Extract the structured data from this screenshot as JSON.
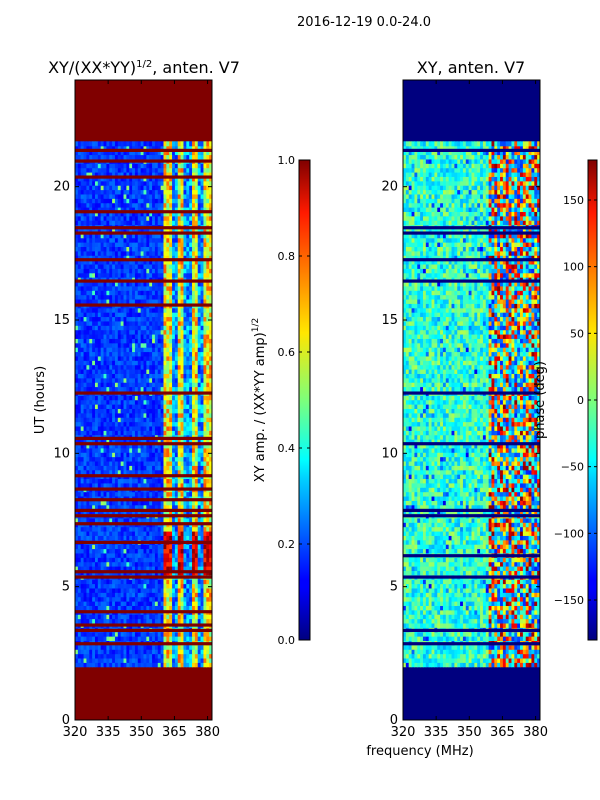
{
  "suptitle": "2016-12-19 0.0-24.0",
  "chart_data": [
    {
      "type": "heatmap",
      "title_main": "XY/(XX*YY)",
      "title_exp": "1/2",
      "title_suffix": ", anten. V7",
      "xlabel": "",
      "ylabel": "UT (hours)",
      "xlim": [
        320,
        382
      ],
      "ylim": [
        0,
        24
      ],
      "xticks": [
        "320",
        "335",
        "350",
        "365",
        "380"
      ],
      "xtick_values": [
        320,
        335,
        350,
        365,
        380
      ],
      "yticks": [
        "0",
        "5",
        "10",
        "15",
        "20"
      ],
      "ytick_values": [
        0,
        5,
        10,
        15,
        20
      ],
      "data_time_range_hours": [
        2,
        21.7
      ],
      "fill_value_color": "#800000",
      "colormap": "jet",
      "colorbar": {
        "label_main": "XY amp. / (XX*YY amp)",
        "label_exp": "1/2",
        "range": [
          0,
          1
        ],
        "ticks": [
          "0.0",
          "0.2",
          "0.4",
          "0.6",
          "0.8",
          "1.0"
        ],
        "tick_values": [
          0,
          0.2,
          0.4,
          0.6,
          0.8,
          1.0
        ]
      },
      "flagged_rows_hours": [
        2.8,
        3.3,
        3.5,
        4.0,
        5.3,
        5.5,
        6.6,
        7.3,
        7.6,
        7.8,
        8.2,
        8.6,
        9.1,
        10.3,
        10.5,
        12.2,
        15.5,
        16.4,
        17.2,
        18.2,
        18.4,
        19.0,
        20.3,
        20.9,
        21.3
      ]
    },
    {
      "type": "heatmap",
      "title_main": "XY, anten. V7",
      "xlabel": "frequency (MHz)",
      "ylabel": "",
      "xlim": [
        320,
        382
      ],
      "ylim": [
        0,
        24
      ],
      "xticks": [
        "320",
        "335",
        "350",
        "365",
        "380"
      ],
      "xtick_values": [
        320,
        335,
        350,
        365,
        380
      ],
      "yticks": [
        "0",
        "5",
        "10",
        "15",
        "20"
      ],
      "ytick_values": [
        0,
        5,
        10,
        15,
        20
      ],
      "data_time_range_hours": [
        2,
        21.7
      ],
      "fill_value_color": "#00007f",
      "colormap": "jet",
      "colorbar": {
        "label_main": "phase (deg)",
        "range": [
          -180,
          180
        ],
        "ticks": [
          "−150",
          "−100",
          "−50",
          "0",
          "50",
          "100",
          "150"
        ],
        "tick_values": [
          -150,
          -100,
          -50,
          0,
          50,
          100,
          150
        ]
      },
      "flagged_rows_hours": [
        2.8,
        3.3,
        5.3,
        6.1,
        7.6,
        7.8,
        10.3,
        12.2,
        16.4,
        17.2,
        18.2,
        18.4,
        21.3
      ]
    }
  ]
}
